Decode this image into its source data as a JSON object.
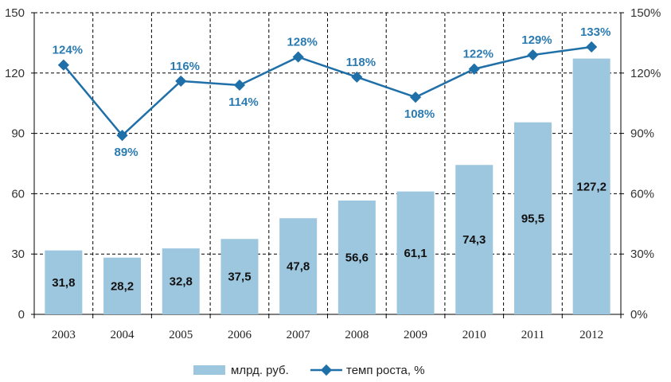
{
  "chart_data": {
    "type": "bar",
    "categories": [
      "2003",
      "2004",
      "2005",
      "2006",
      "2007",
      "2008",
      "2009",
      "2010",
      "2011",
      "2012"
    ],
    "series": [
      {
        "name": "млрд. руб.",
        "type": "bar",
        "axis": "left",
        "values": [
          31.8,
          28.2,
          32.8,
          37.5,
          47.8,
          56.6,
          61.1,
          74.3,
          95.5,
          127.2
        ],
        "labels": [
          "31,8",
          "28,2",
          "32,8",
          "37,5",
          "47,8",
          "56,6",
          "61,1",
          "74,3",
          "95,5",
          "127,2"
        ],
        "color": "#9dc6df"
      },
      {
        "name": "темп роста, %",
        "type": "line",
        "axis": "right",
        "values": [
          124,
          89,
          116,
          114,
          128,
          118,
          108,
          122,
          129,
          133
        ],
        "labels": [
          "124%",
          "89%",
          "116%",
          "114%",
          "128%",
          "118%",
          "108%",
          "122%",
          "129%",
          "133%"
        ],
        "color": "#1f6fa8"
      }
    ],
    "y_left": {
      "lim": [
        0,
        150
      ],
      "ticks": [
        "0",
        "30",
        "60",
        "90",
        "120",
        "150"
      ]
    },
    "y_right": {
      "lim": [
        0,
        150
      ],
      "ticks": [
        "0%",
        "30%",
        "60%",
        "90%",
        "120%",
        "150%"
      ]
    },
    "grid": "dashed",
    "legend_position": "bottom"
  }
}
